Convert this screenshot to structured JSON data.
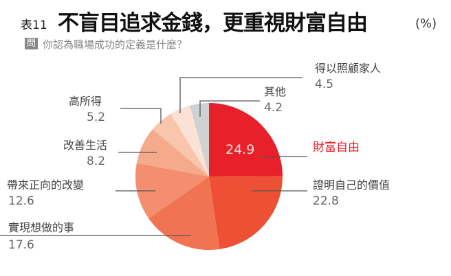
{
  "title_prefix": "表11",
  "title": "不盲目追求金錢，更重視財富自由",
  "unit": "(%)",
  "question_badge": "問",
  "question": "你認為職場成功的定義是什麼？",
  "chart_data": {
    "type": "pie",
    "start": "top",
    "direction": "clockwise",
    "slices": [
      {
        "label": "財富自由",
        "value": 24.9,
        "color": "#e8202a"
      },
      {
        "label": "證明自己的價值",
        "value": 22.8,
        "color": "#ee5035"
      },
      {
        "label": "實現想做的事",
        "value": 17.6,
        "color": "#f07352"
      },
      {
        "label": "帶來正向的改變",
        "value": 12.6,
        "color": "#f38f6f"
      },
      {
        "label": "改善生活",
        "value": 8.2,
        "color": "#f6aa8c"
      },
      {
        "label": "高所得",
        "value": 5.2,
        "color": "#f9c5ad"
      },
      {
        "label": "得以照顧家人",
        "value": 4.5,
        "color": "#fce2d6"
      },
      {
        "label": "其他",
        "value": 4.2,
        "color": "#d0d1d3"
      }
    ]
  }
}
